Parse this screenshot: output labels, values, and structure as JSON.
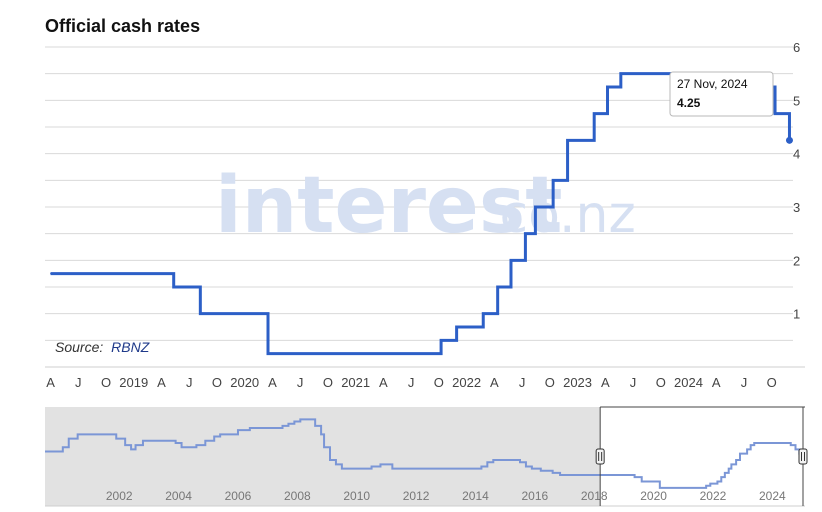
{
  "title": "Official cash rates",
  "source_label": "Source:",
  "source_name": "RBNZ",
  "watermark": "interest",
  "watermark_suffix": ".co.nz",
  "tooltip": {
    "date": "27 Nov, 2024",
    "value": "4.25"
  },
  "colors": {
    "line": "#2c5fc7",
    "navigator_line": "#7b96d6",
    "navigator_mask": "#e2e2e2",
    "grid": "#d9d9d9"
  },
  "chart_data": {
    "type": "line",
    "step": true,
    "title": "Official cash rates",
    "ylim": [
      0,
      6
    ],
    "y_ticks": [
      1,
      2,
      3,
      4,
      5,
      6
    ],
    "xlim": [
      2018.2,
      2025.05
    ],
    "x_tick_labels": [
      {
        "x": 2018.25,
        "label": "A"
      },
      {
        "x": 2018.5,
        "label": "J"
      },
      {
        "x": 2018.75,
        "label": "O"
      },
      {
        "x": 2019.0,
        "label": "2019"
      },
      {
        "x": 2019.25,
        "label": "A"
      },
      {
        "x": 2019.5,
        "label": "J"
      },
      {
        "x": 2019.75,
        "label": "O"
      },
      {
        "x": 2020.0,
        "label": "2020"
      },
      {
        "x": 2020.25,
        "label": "A"
      },
      {
        "x": 2020.5,
        "label": "J"
      },
      {
        "x": 2020.75,
        "label": "O"
      },
      {
        "x": 2021.0,
        "label": "2021"
      },
      {
        "x": 2021.25,
        "label": "A"
      },
      {
        "x": 2021.5,
        "label": "J"
      },
      {
        "x": 2021.75,
        "label": "O"
      },
      {
        "x": 2022.0,
        "label": "2022"
      },
      {
        "x": 2022.25,
        "label": "A"
      },
      {
        "x": 2022.5,
        "label": "J"
      },
      {
        "x": 2022.75,
        "label": "O"
      },
      {
        "x": 2023.0,
        "label": "2023"
      },
      {
        "x": 2023.25,
        "label": "A"
      },
      {
        "x": 2023.5,
        "label": "J"
      },
      {
        "x": 2023.75,
        "label": "O"
      },
      {
        "x": 2024.0,
        "label": "2024"
      },
      {
        "x": 2024.25,
        "label": "A"
      },
      {
        "x": 2024.5,
        "label": "J"
      },
      {
        "x": 2024.75,
        "label": "O"
      }
    ],
    "series": [
      {
        "values": [
          {
            "x": 2018.25,
            "y": 1.75
          },
          {
            "x": 2019.36,
            "y": 1.5
          },
          {
            "x": 2019.6,
            "y": 1.0
          },
          {
            "x": 2020.21,
            "y": 0.25
          },
          {
            "x": 2021.77,
            "y": 0.5
          },
          {
            "x": 2021.91,
            "y": 0.75
          },
          {
            "x": 2022.15,
            "y": 1.0
          },
          {
            "x": 2022.28,
            "y": 1.5
          },
          {
            "x": 2022.4,
            "y": 2.0
          },
          {
            "x": 2022.53,
            "y": 2.5
          },
          {
            "x": 2022.62,
            "y": 3.0
          },
          {
            "x": 2022.78,
            "y": 3.5
          },
          {
            "x": 2022.91,
            "y": 4.25
          },
          {
            "x": 2023.15,
            "y": 4.75
          },
          {
            "x": 2023.27,
            "y": 5.25
          },
          {
            "x": 2023.39,
            "y": 5.5
          },
          {
            "x": 2024.62,
            "y": 5.25
          },
          {
            "x": 2024.78,
            "y": 4.75
          },
          {
            "x": 2024.91,
            "y": 4.25
          }
        ]
      }
    ],
    "navigator": {
      "xlim": [
        1999.5,
        2025.1
      ],
      "ylim": [
        0,
        9
      ],
      "x_tick_labels": [
        {
          "x": 2002,
          "label": "2002"
        },
        {
          "x": 2004,
          "label": "2004"
        },
        {
          "x": 2006,
          "label": "2006"
        },
        {
          "x": 2008,
          "label": "2008"
        },
        {
          "x": 2010,
          "label": "2010"
        },
        {
          "x": 2012,
          "label": "2012"
        },
        {
          "x": 2014,
          "label": "2014"
        },
        {
          "x": 2016,
          "label": "2016"
        },
        {
          "x": 2018,
          "label": "2018"
        },
        {
          "x": 2020,
          "label": "2020"
        },
        {
          "x": 2022,
          "label": "2022"
        },
        {
          "x": 2024,
          "label": "2024"
        }
      ],
      "selection": [
        2018.2,
        2025.1
      ],
      "values": [
        {
          "x": 1999.5,
          "y": 4.5
        },
        {
          "x": 2000.1,
          "y": 5.0
        },
        {
          "x": 2000.3,
          "y": 6.0
        },
        {
          "x": 2000.6,
          "y": 6.5
        },
        {
          "x": 2001.9,
          "y": 6.0
        },
        {
          "x": 2002.2,
          "y": 5.25
        },
        {
          "x": 2002.4,
          "y": 4.75
        },
        {
          "x": 2002.55,
          "y": 5.25
        },
        {
          "x": 2002.8,
          "y": 5.75
        },
        {
          "x": 2003.9,
          "y": 5.5
        },
        {
          "x": 2004.1,
          "y": 5.0
        },
        {
          "x": 2004.6,
          "y": 5.25
        },
        {
          "x": 2004.9,
          "y": 5.75
        },
        {
          "x": 2005.2,
          "y": 6.25
        },
        {
          "x": 2005.4,
          "y": 6.5
        },
        {
          "x": 2006.0,
          "y": 7.0
        },
        {
          "x": 2006.4,
          "y": 7.25
        },
        {
          "x": 2007.5,
          "y": 7.5
        },
        {
          "x": 2007.7,
          "y": 7.75
        },
        {
          "x": 2007.9,
          "y": 8.0
        },
        {
          "x": 2008.1,
          "y": 8.25
        },
        {
          "x": 2008.6,
          "y": 7.5
        },
        {
          "x": 2008.8,
          "y": 6.5
        },
        {
          "x": 2008.9,
          "y": 5.0
        },
        {
          "x": 2009.1,
          "y": 3.5
        },
        {
          "x": 2009.3,
          "y": 3.0
        },
        {
          "x": 2009.5,
          "y": 2.5
        },
        {
          "x": 2010.5,
          "y": 2.75
        },
        {
          "x": 2010.8,
          "y": 3.0
        },
        {
          "x": 2011.2,
          "y": 2.5
        },
        {
          "x": 2014.2,
          "y": 2.75
        },
        {
          "x": 2014.4,
          "y": 3.25
        },
        {
          "x": 2014.6,
          "y": 3.5
        },
        {
          "x": 2015.5,
          "y": 3.25
        },
        {
          "x": 2015.7,
          "y": 2.75
        },
        {
          "x": 2015.9,
          "y": 2.5
        },
        {
          "x": 2016.2,
          "y": 2.25
        },
        {
          "x": 2016.6,
          "y": 2.0
        },
        {
          "x": 2016.85,
          "y": 1.75
        },
        {
          "x": 2019.36,
          "y": 1.5
        },
        {
          "x": 2019.6,
          "y": 1.0
        },
        {
          "x": 2020.21,
          "y": 0.25
        },
        {
          "x": 2021.77,
          "y": 0.5
        },
        {
          "x": 2021.91,
          "y": 0.75
        },
        {
          "x": 2022.15,
          "y": 1.0
        },
        {
          "x": 2022.28,
          "y": 1.5
        },
        {
          "x": 2022.4,
          "y": 2.0
        },
        {
          "x": 2022.53,
          "y": 2.5
        },
        {
          "x": 2022.62,
          "y": 3.0
        },
        {
          "x": 2022.78,
          "y": 3.5
        },
        {
          "x": 2022.91,
          "y": 4.25
        },
        {
          "x": 2023.15,
          "y": 4.75
        },
        {
          "x": 2023.27,
          "y": 5.25
        },
        {
          "x": 2023.39,
          "y": 5.5
        },
        {
          "x": 2024.62,
          "y": 5.25
        },
        {
          "x": 2024.78,
          "y": 4.75
        },
        {
          "x": 2024.91,
          "y": 4.25
        },
        {
          "x": 2025.1,
          "y": 4.25
        }
      ]
    }
  }
}
